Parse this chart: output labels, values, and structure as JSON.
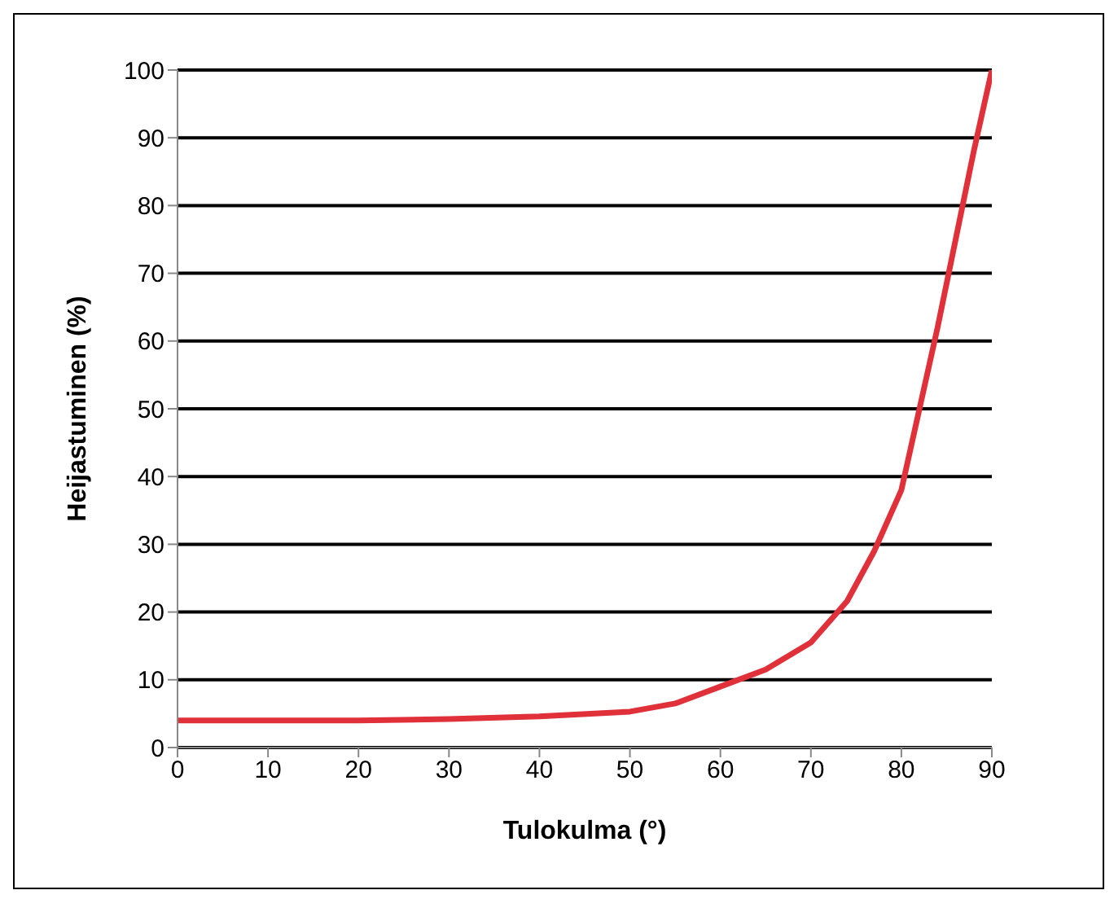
{
  "chart_data": {
    "type": "line",
    "xlabel": "Tulokulma (°)",
    "ylabel": "Heijastuminen (%)",
    "x": [
      0,
      10,
      20,
      30,
      40,
      50,
      55,
      60,
      65,
      70,
      74,
      77,
      80,
      82,
      84,
      86,
      88,
      90
    ],
    "series": [
      {
        "color": "#e0303a",
        "values": [
          4,
          4,
          4,
          4.2,
          4.6,
          5.3,
          6.5,
          9,
          11.5,
          15.5,
          21.6,
          29,
          38,
          50,
          62,
          75,
          88,
          100
        ]
      }
    ],
    "xlim": [
      0,
      90
    ],
    "xticks": [
      0,
      10,
      20,
      30,
      40,
      50,
      60,
      70,
      80,
      90
    ],
    "ylim": [
      0,
      100
    ],
    "yticks": [
      0,
      10,
      20,
      30,
      40,
      50,
      60,
      70,
      80,
      90,
      100
    ],
    "grid": "y",
    "legend": false,
    "marker": "none",
    "line_style": "solid"
  }
}
